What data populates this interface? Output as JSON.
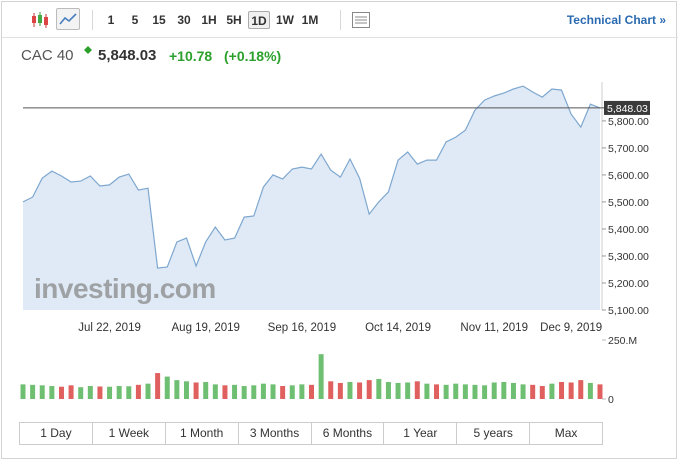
{
  "toolbar": {
    "intervals": [
      "1",
      "5",
      "15",
      "30",
      "1H",
      "5H",
      "1D",
      "1W",
      "1M"
    ],
    "active_index": 6,
    "link": "Technical Chart »"
  },
  "header": {
    "symbol": "CAC 40",
    "change": "+10.78",
    "change_pct": "(+0.18%)"
  },
  "watermark": "investing.com",
  "chart_data": [
    {
      "type": "line",
      "color": "#7ea7cf",
      "fill": "#dfeaf6",
      "categories": [
        null,
        null,
        null,
        null,
        null,
        null,
        null,
        null,
        null,
        "Jul 22, 2019",
        null,
        null,
        null,
        null,
        null,
        null,
        null,
        null,
        null,
        "Aug 19, 2019",
        null,
        null,
        null,
        null,
        null,
        null,
        null,
        null,
        null,
        "Sep 16, 2019",
        null,
        null,
        null,
        null,
        null,
        null,
        null,
        null,
        null,
        "Oct 14, 2019",
        null,
        null,
        null,
        null,
        null,
        null,
        null,
        null,
        null,
        "Nov 11, 2019",
        null,
        null,
        null,
        null,
        null,
        null,
        null,
        "Dec 9, 2019",
        null,
        null,
        null
      ],
      "values": [
        5500,
        5518,
        5588,
        5614,
        5596,
        5574,
        5577,
        5596,
        5559,
        5563,
        5592,
        5603,
        5544,
        5551,
        5255,
        5259,
        5352,
        5366,
        5263,
        5352,
        5407,
        5359,
        5366,
        5444,
        5448,
        5555,
        5600,
        5585,
        5622,
        5629,
        5622,
        5677,
        5618,
        5592,
        5659,
        5588,
        5455,
        5500,
        5537,
        5655,
        5685,
        5640,
        5655,
        5655,
        5722,
        5740,
        5766,
        5840,
        5877,
        5892,
        5903,
        5918,
        5929,
        5907,
        5888,
        5918,
        5914,
        5825,
        5777,
        5862,
        5848.03
      ],
      "ylim": [
        5100,
        5944
      ],
      "yticks": [
        {
          "value": 5100,
          "label": "5,100.00"
        },
        {
          "value": 5200,
          "label": "5,200.00"
        },
        {
          "value": 5300,
          "label": "5,300.00"
        },
        {
          "value": 5400,
          "label": "5,400.00"
        },
        {
          "value": 5500,
          "label": "5,500.00"
        },
        {
          "value": 5600,
          "label": "5,600.00"
        },
        {
          "value": 5700,
          "label": "5,700.00"
        },
        {
          "value": 5800,
          "label": "5,800.00"
        }
      ],
      "last_price": {
        "value": 5848.03,
        "label": "5,848.03"
      }
    },
    {
      "type": "bar",
      "values": [
        62,
        60,
        58,
        55,
        52,
        58,
        50,
        55,
        53,
        52,
        55,
        54,
        60,
        65,
        110,
        95,
        80,
        75,
        70,
        72,
        62,
        58,
        60,
        55,
        58,
        65,
        62,
        55,
        58,
        62,
        60,
        190,
        75,
        68,
        72,
        70,
        80,
        85,
        72,
        68,
        70,
        75,
        65,
        62,
        60,
        65,
        62,
        60,
        58,
        70,
        72,
        68,
        62,
        60,
        55,
        65,
        72,
        70,
        80,
        68,
        62
      ],
      "colors": [
        "#6fbf73",
        "#6fbf73",
        "#6fbf73",
        "#6fbf73",
        "#e06060",
        "#e06060",
        "#6fbf73",
        "#6fbf73",
        "#e06060",
        "#6fbf73",
        "#6fbf73",
        "#6fbf73",
        "#e06060",
        "#6fbf73",
        "#e06060",
        "#6fbf73",
        "#6fbf73",
        "#6fbf73",
        "#e06060",
        "#6fbf73",
        "#6fbf73",
        "#e06060",
        "#6fbf73",
        "#6fbf73",
        "#6fbf73",
        "#6fbf73",
        "#6fbf73",
        "#e06060",
        "#6fbf73",
        "#6fbf73",
        "#e06060",
        "#6fbf73",
        "#e06060",
        "#e06060",
        "#6fbf73",
        "#e06060",
        "#e06060",
        "#6fbf73",
        "#6fbf73",
        "#6fbf73",
        "#6fbf73",
        "#e06060",
        "#6fbf73",
        "#e06060",
        "#6fbf73",
        "#6fbf73",
        "#6fbf73",
        "#6fbf73",
        "#6fbf73",
        "#6fbf73",
        "#6fbf73",
        "#6fbf73",
        "#6fbf73",
        "#e06060",
        "#e06060",
        "#6fbf73",
        "#e06060",
        "#e06060",
        "#e06060",
        "#6fbf73",
        "#e06060"
      ],
      "ylim": [
        0,
        250
      ],
      "yticks": [
        {
          "value": 250,
          "label": "250.M"
        },
        0
      ]
    }
  ],
  "ranges": [
    "1 Day",
    "1 Week",
    "1 Month",
    "3 Months",
    "6 Months",
    "1 Year",
    "5 years",
    "Max"
  ]
}
